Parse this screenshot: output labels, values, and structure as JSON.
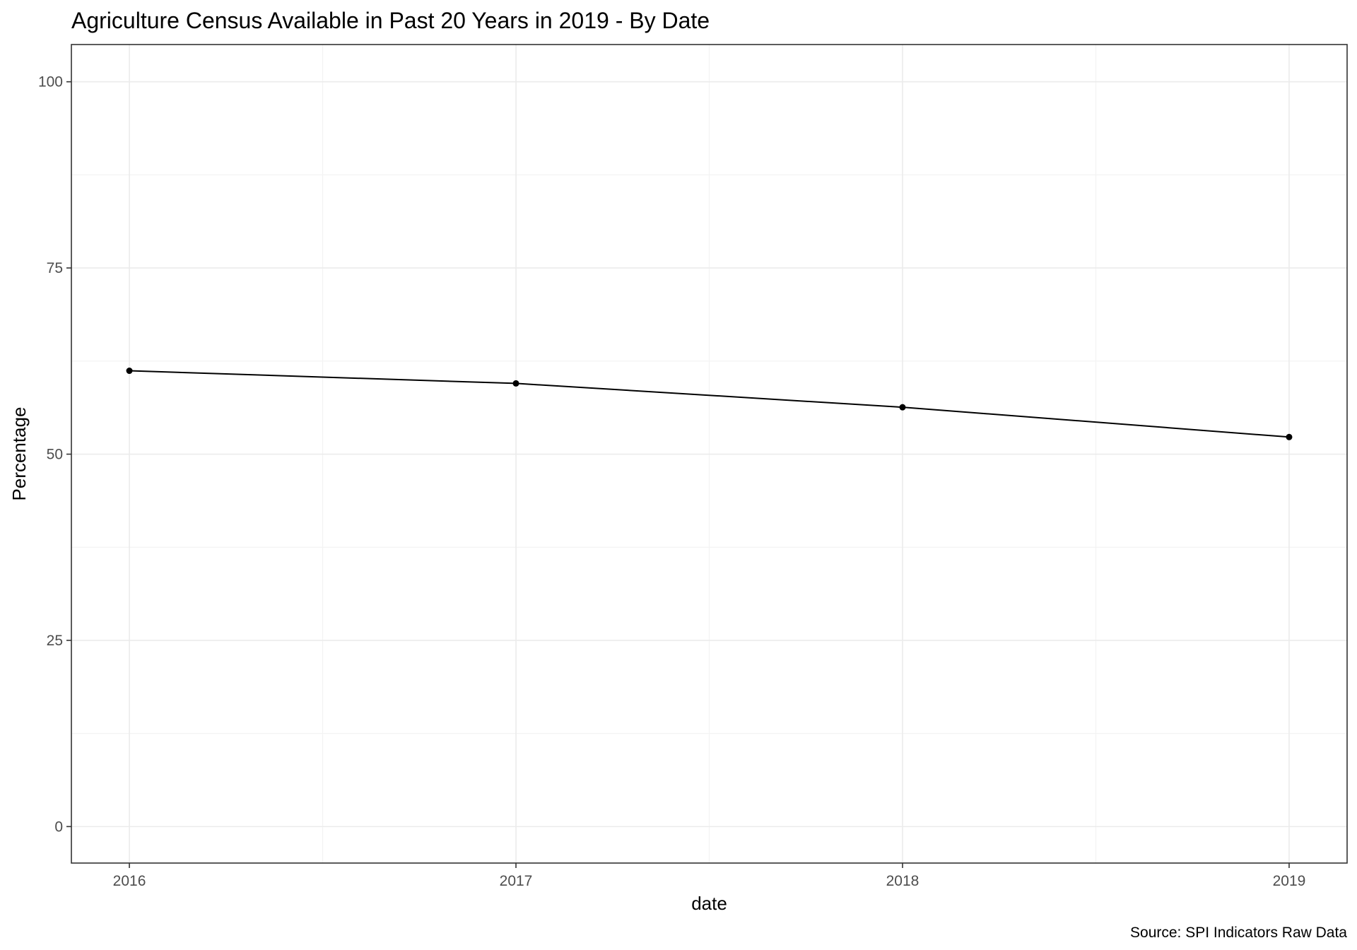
{
  "chart_data": {
    "type": "line",
    "title": "Agriculture Census Available in Past 20 Years in 2019 - By Date",
    "xlabel": "date",
    "ylabel": "Percentage",
    "caption": "Source: SPI Indicators Raw Data",
    "x": [
      2016,
      2017,
      2018,
      2019
    ],
    "series": [
      {
        "values": [
          61.2,
          59.5,
          56.3,
          52.3
        ]
      }
    ],
    "xlim": [
      2015.85,
      2019.15
    ],
    "ylim": [
      -4.9,
      105
    ],
    "x_ticks": [
      "2016",
      "2017",
      "2018",
      "2019"
    ],
    "y_ticks": [
      "0",
      "25",
      "50",
      "75",
      "100"
    ],
    "grid": true,
    "legend": "none",
    "colors": {
      "line": "#000000",
      "grid": "#ebebeb",
      "border": "#333333"
    }
  }
}
